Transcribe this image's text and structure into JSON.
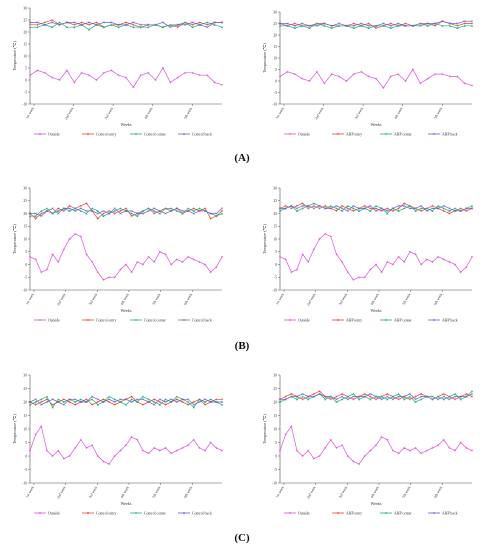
{
  "figure": {
    "panel_labels": [
      "(A)",
      "(B)",
      "(C)"
    ]
  },
  "colors": {
    "outside": "#e04fe0",
    "entry": "#e8452c",
    "center": "#1fb07a",
    "back": "#6a5fcf"
  },
  "chart_data": [
    {
      "type": "line",
      "panel": "A",
      "side": "left",
      "ylabel": "Temperature (℃)",
      "xlabel": "Weeks",
      "ylim": [
        -10,
        30
      ],
      "yticks": [
        -10,
        -5,
        0,
        5,
        10,
        15,
        20,
        25,
        30
      ],
      "xticks": [
        "1st week",
        "2nd week",
        "3rd week",
        "4th week",
        "5th week"
      ],
      "series": [
        {
          "name": "Outside",
          "values": [
            2,
            4,
            3,
            1,
            0,
            4,
            -1,
            3,
            2,
            0,
            3,
            4,
            2,
            1,
            -3,
            2,
            3,
            0,
            5,
            -1,
            1,
            3,
            3,
            2,
            2,
            -1,
            -2
          ]
        },
        {
          "name": "Control entry",
          "values": [
            23,
            23,
            24,
            25,
            23,
            24,
            23,
            24,
            23,
            24,
            22,
            23,
            23,
            24,
            23,
            22,
            23,
            23,
            22,
            23,
            22,
            24,
            23,
            24,
            23,
            24,
            24
          ]
        },
        {
          "name": "Control center",
          "values": [
            22,
            22,
            23,
            22,
            24,
            22,
            22,
            23,
            21,
            23,
            22,
            23,
            22,
            23,
            22,
            22,
            22,
            23,
            22,
            23,
            23,
            24,
            22,
            23,
            24,
            23,
            22
          ]
        },
        {
          "name": "Control back",
          "values": [
            24,
            24,
            23,
            24,
            23,
            24,
            24,
            23,
            24,
            23,
            24,
            24,
            23,
            23,
            24,
            23,
            23,
            23,
            24,
            22,
            23,
            23,
            24,
            23,
            22,
            24,
            24
          ]
        }
      ]
    },
    {
      "type": "line",
      "panel": "A",
      "side": "right",
      "ylabel": "Temperature (℃)",
      "xlabel": "Weeks",
      "ylim": [
        -10,
        30
      ],
      "yticks": [
        -10,
        -5,
        0,
        5,
        10,
        15,
        20,
        25,
        30
      ],
      "xticks": [
        "1st week",
        "2nd week",
        "3rd week",
        "4th week",
        "5th week"
      ],
      "series": [
        {
          "name": "Outside",
          "values": [
            2,
            4,
            3,
            1,
            0,
            4,
            -1,
            3,
            2,
            0,
            3,
            4,
            2,
            1,
            -3,
            2,
            3,
            0,
            5,
            -1,
            1,
            3,
            3,
            2,
            2,
            -1,
            -2
          ]
        },
        {
          "name": "AHP entry",
          "values": [
            25,
            24,
            25,
            24,
            24,
            25,
            25,
            24,
            24,
            24,
            25,
            24,
            25,
            23,
            24,
            25,
            24,
            25,
            24,
            25,
            25,
            24,
            26,
            25,
            24,
            25,
            25
          ]
        },
        {
          "name": "AHP center",
          "values": [
            24,
            24,
            23,
            24,
            23,
            25,
            24,
            23,
            24,
            24,
            23,
            24,
            23,
            24,
            24,
            23,
            24,
            24,
            24,
            25,
            24,
            25,
            24,
            24,
            23,
            24,
            24
          ]
        },
        {
          "name": "AHP back",
          "values": [
            25,
            25,
            24,
            25,
            24,
            24,
            25,
            24,
            25,
            24,
            24,
            25,
            24,
            24,
            25,
            24,
            25,
            24,
            24,
            24,
            25,
            25,
            26,
            25,
            25,
            26,
            26
          ]
        }
      ]
    },
    {
      "type": "line",
      "panel": "B",
      "side": "left",
      "ylabel": "Temperature (℃)",
      "xlabel": "Weeks",
      "ylim": [
        -10,
        30
      ],
      "yticks": [
        -10,
        -5,
        0,
        5,
        10,
        15,
        20,
        25,
        30
      ],
      "xticks": [
        "1st week",
        "2nd week",
        "3rd week",
        "4th week",
        "5th week",
        "6th week"
      ],
      "series": [
        {
          "name": "Outside",
          "values": [
            3,
            2,
            -3,
            -2,
            4,
            1,
            6,
            10,
            12,
            11,
            4,
            1,
            -3,
            -6,
            -5,
            -5,
            -2,
            0,
            -3,
            1,
            0,
            3,
            1,
            5,
            4,
            0,
            2,
            1,
            3,
            2,
            1,
            0,
            -3,
            -1,
            3
          ]
        },
        {
          "name": "Control entry",
          "values": [
            20,
            18,
            20,
            21,
            20,
            22,
            21,
            23,
            22,
            23,
            24,
            21,
            18,
            20,
            21,
            20,
            21,
            22,
            19,
            20,
            21,
            22,
            20,
            21,
            22,
            21,
            22,
            20,
            21,
            22,
            21,
            22,
            18,
            19,
            21
          ]
        },
        {
          "name": "Control center",
          "values": [
            19,
            19,
            21,
            22,
            20,
            21,
            22,
            21,
            22,
            21,
            20,
            22,
            21,
            19,
            20,
            21,
            22,
            21,
            20,
            19,
            21,
            22,
            21,
            20,
            22,
            22,
            21,
            20,
            22,
            21,
            22,
            21,
            20,
            19,
            20
          ]
        },
        {
          "name": "Control back",
          "values": [
            20,
            20,
            19,
            21,
            22,
            20,
            22,
            22,
            21,
            22,
            21,
            21,
            20,
            21,
            20,
            22,
            20,
            21,
            21,
            20,
            20,
            21,
            22,
            21,
            20,
            21,
            22,
            21,
            21,
            20,
            21,
            21,
            20,
            20,
            22
          ]
        }
      ]
    },
    {
      "type": "line",
      "panel": "B",
      "side": "right",
      "ylabel": "Temperature (℃)",
      "xlabel": "Weeks",
      "ylim": [
        -10,
        30
      ],
      "yticks": [
        -10,
        -5,
        0,
        5,
        10,
        15,
        20,
        25,
        30
      ],
      "xticks": [
        "1st week",
        "2nd week",
        "3rd week",
        "4th week",
        "5th week",
        "6th week"
      ],
      "series": [
        {
          "name": "Outside",
          "values": [
            3,
            2,
            -3,
            -2,
            4,
            1,
            6,
            10,
            12,
            11,
            4,
            1,
            -3,
            -6,
            -5,
            -5,
            -2,
            0,
            -3,
            1,
            0,
            3,
            1,
            5,
            4,
            0,
            2,
            1,
            3,
            2,
            1,
            0,
            -3,
            -1,
            3
          ]
        },
        {
          "name": "AHP entry",
          "values": [
            22,
            23,
            22,
            23,
            24,
            22,
            23,
            22,
            23,
            22,
            21,
            23,
            22,
            21,
            22,
            23,
            22,
            22,
            21,
            22,
            21,
            22,
            24,
            23,
            22,
            21,
            22,
            23,
            22,
            21,
            20,
            21,
            22,
            21,
            22
          ]
        },
        {
          "name": "AHP center",
          "values": [
            21,
            22,
            23,
            21,
            22,
            23,
            24,
            23,
            22,
            23,
            22,
            21,
            23,
            22,
            21,
            22,
            21,
            23,
            22,
            20,
            22,
            21,
            22,
            23,
            21,
            22,
            22,
            21,
            23,
            22,
            21,
            22,
            21,
            22,
            23
          ]
        },
        {
          "name": "AHP back",
          "values": [
            22,
            22,
            23,
            22,
            23,
            23,
            22,
            23,
            22,
            22,
            23,
            22,
            21,
            23,
            22,
            22,
            23,
            21,
            22,
            21,
            22,
            23,
            23,
            22,
            22,
            23,
            21,
            22,
            22,
            23,
            22,
            21,
            21,
            22,
            22
          ]
        }
      ]
    },
    {
      "type": "line",
      "panel": "C",
      "side": "left",
      "ylabel": "Temperature (℃)",
      "xlabel": "Weeks",
      "ylim": [
        -10,
        30
      ],
      "yticks": [
        -10,
        -5,
        0,
        5,
        10,
        15,
        20,
        25,
        30
      ],
      "xticks": [
        "1st week",
        "2nd week",
        "3rd week",
        "4th week",
        "5th week",
        "6th week"
      ],
      "series": [
        {
          "name": "Outside",
          "values": [
            2,
            8,
            11,
            2,
            0,
            2,
            -1,
            0,
            3,
            6,
            3,
            4,
            0,
            -2,
            -3,
            0,
            2,
            4,
            7,
            6,
            2,
            1,
            3,
            2,
            3,
            1,
            2,
            3,
            4,
            6,
            3,
            2,
            5,
            3,
            2
          ]
        },
        {
          "name": "Control entry",
          "values": [
            20,
            19,
            20,
            21,
            19,
            20,
            21,
            20,
            19,
            20,
            21,
            19,
            20,
            21,
            20,
            19,
            20,
            21,
            22,
            20,
            19,
            20,
            21,
            20,
            19,
            20,
            21,
            20,
            19,
            20,
            21,
            19,
            20,
            21,
            21
          ]
        },
        {
          "name": "Control center",
          "values": [
            19,
            20,
            21,
            22,
            18,
            21,
            20,
            21,
            20,
            21,
            20,
            21,
            19,
            20,
            22,
            21,
            20,
            19,
            21,
            20,
            22,
            21,
            20,
            19,
            21,
            20,
            22,
            21,
            20,
            18,
            21,
            20,
            21,
            20,
            19
          ]
        },
        {
          "name": "Control back",
          "values": [
            20,
            21,
            19,
            20,
            21,
            20,
            19,
            21,
            21,
            20,
            20,
            22,
            21,
            20,
            21,
            20,
            21,
            21,
            20,
            21,
            21,
            20,
            19,
            21,
            20,
            21,
            20,
            21,
            21,
            19,
            20,
            21,
            20,
            20,
            20
          ]
        }
      ]
    },
    {
      "type": "line",
      "panel": "C",
      "side": "right",
      "ylabel": "Temperature (℃)",
      "xlabel": "Weeks",
      "ylim": [
        -10,
        30
      ],
      "yticks": [
        -10,
        -5,
        0,
        5,
        10,
        15,
        20,
        25,
        30
      ],
      "xticks": [
        "1st week",
        "2nd week",
        "3rd week",
        "4th week",
        "5th week",
        "6th week"
      ],
      "series": [
        {
          "name": "Outside",
          "values": [
            2,
            8,
            11,
            2,
            0,
            2,
            -1,
            0,
            3,
            6,
            3,
            4,
            0,
            -2,
            -3,
            0,
            2,
            4,
            7,
            6,
            2,
            1,
            3,
            2,
            3,
            1,
            2,
            3,
            4,
            6,
            3,
            2,
            5,
            3,
            2
          ]
        },
        {
          "name": "AHP entry",
          "values": [
            21,
            22,
            23,
            22,
            21,
            22,
            23,
            24,
            22,
            21,
            22,
            23,
            22,
            21,
            22,
            23,
            22,
            21,
            22,
            23,
            22,
            21,
            22,
            21,
            22,
            23,
            22,
            21,
            22,
            23,
            22,
            21,
            22,
            23,
            22
          ]
        },
        {
          "name": "AHP center",
          "values": [
            20,
            21,
            22,
            21,
            22,
            21,
            22,
            23,
            21,
            22,
            20,
            21,
            22,
            23,
            21,
            22,
            21,
            22,
            22,
            21,
            22,
            23,
            21,
            22,
            20,
            21,
            22,
            21,
            22,
            21,
            22,
            23,
            21,
            22,
            24
          ]
        },
        {
          "name": "AHP back",
          "values": [
            21,
            21,
            22,
            22,
            23,
            22,
            22,
            23,
            22,
            22,
            21,
            22,
            21,
            22,
            22,
            22,
            23,
            22,
            21,
            22,
            21,
            22,
            22,
            23,
            21,
            22,
            22,
            22,
            21,
            22,
            21,
            22,
            22,
            22,
            23
          ]
        }
      ]
    }
  ]
}
